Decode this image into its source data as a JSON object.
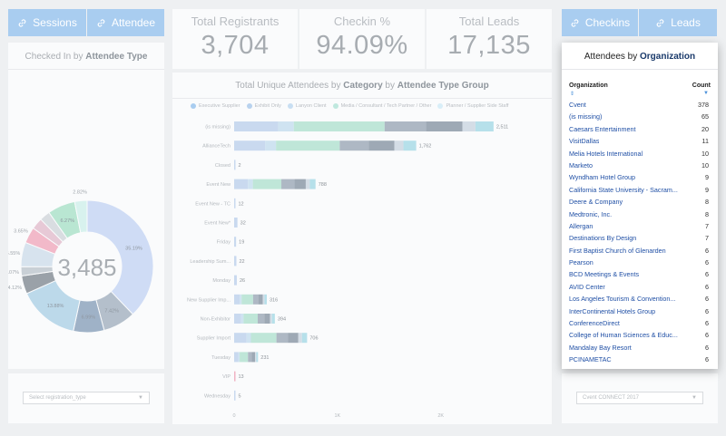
{
  "left_tabs": [
    {
      "label": "Sessions",
      "icon": "link-icon"
    },
    {
      "label": "Attendee",
      "icon": "link-icon"
    }
  ],
  "right_tabs": [
    {
      "label": "Checkins",
      "icon": "link-icon"
    },
    {
      "label": "Leads",
      "icon": "link-icon"
    }
  ],
  "kpis": [
    {
      "label": "Total Registrants",
      "value": "3,704"
    },
    {
      "label": "Checkin %",
      "value": "94.09%"
    },
    {
      "label": "Total Leads",
      "value": "17,135"
    }
  ],
  "donut_panel": {
    "title_prefix": "Checked In by ",
    "title_bold": "Attendee Type",
    "center_value": "3,485",
    "slices": [
      {
        "label": "35.19%",
        "value": 35.19,
        "color": "#cfdcf5"
      },
      {
        "label": "7.42%",
        "value": 7.42,
        "color": "#b4bfcb"
      },
      {
        "label": "6.99%",
        "value": 6.99,
        "color": "#9fb2c7"
      },
      {
        "label": "13.88%",
        "value": 13.88,
        "color": "#bcd9ea"
      },
      {
        "label": "4.12%",
        "value": 4.12,
        "color": "#9aa1a8"
      },
      {
        "label": "2.07%",
        "value": 2.07,
        "color": "#c9d0d6"
      },
      {
        "label": "5.55%",
        "value": 5.55,
        "color": "#d7e3ee"
      },
      {
        "label": "3.65%",
        "value": 3.65,
        "color": "#f2b9c9"
      },
      {
        "label": "",
        "value": 2.6,
        "color": "#e7c9d6"
      },
      {
        "label": "",
        "value": 2.4,
        "color": "#d9dde1"
      },
      {
        "label": "6.27%",
        "value": 6.27,
        "color": "#b9e6d2"
      },
      {
        "label": "2.82%",
        "value": 2.82,
        "color": "#d8f2ee"
      }
    ]
  },
  "left_select": {
    "placeholder": "Select registration_type"
  },
  "right_select": {
    "value": "Cvent CONNECT 2017"
  },
  "chart_data": {
    "type": "bar",
    "title_prefix": "Total Unique Attendees by ",
    "title_bold1": "Category",
    "title_mid": " by ",
    "title_bold2": "Attendee Type Group",
    "legend": [
      {
        "name": "Executive Supplier",
        "color": "#a9cdf0"
      },
      {
        "name": "Exhibit Only",
        "color": "#b8d2ee"
      },
      {
        "name": "Lanyon Client",
        "color": "#c8def2"
      },
      {
        "name": "Media / Consultant / Tech Partner / Other",
        "color": "#bfe8de"
      },
      {
        "name": "Planner / Supplier Side Staff",
        "color": "#d8eef8"
      }
    ],
    "categories": [
      "(is missing)",
      "AllianceTech",
      "Closed",
      "Event New",
      "Event New - TC",
      "Event New*",
      "Friday",
      "Leadership Sum...",
      "Monday",
      "New Supplier Imp...",
      "Non-Exhibitor",
      "Supplier Import",
      "Tuesday",
      "VIP",
      "Wednesday"
    ],
    "values": [
      2511,
      1762,
      2,
      788,
      12,
      32,
      19,
      22,
      26,
      316,
      394,
      706,
      231,
      13,
      5
    ],
    "value_labels": [
      "2,511",
      "1,762",
      "2",
      "788",
      "12",
      "32",
      "19",
      "22",
      "26",
      "316",
      "394",
      "706",
      "231",
      "13",
      "5"
    ],
    "x_ticks": [
      "0",
      "1K",
      "2K"
    ],
    "xlim": [
      0,
      2600
    ]
  },
  "org_table": {
    "title_prefix": "Attendees by ",
    "title_bold": "Organization",
    "col_org": "Organization",
    "col_count": "Count",
    "rows": [
      {
        "org": "Cvent",
        "count": "378"
      },
      {
        "org": "(is missing)",
        "count": "65"
      },
      {
        "org": "Caesars Entertainment",
        "count": "20"
      },
      {
        "org": "VisitDallas",
        "count": "11"
      },
      {
        "org": "Melia Hotels International",
        "count": "10"
      },
      {
        "org": "Marketo",
        "count": "10"
      },
      {
        "org": "Wyndham Hotel Group",
        "count": "9"
      },
      {
        "org": "California State University - Sacram...",
        "count": "9"
      },
      {
        "org": "Deere & Company",
        "count": "8"
      },
      {
        "org": "Medtronic, Inc.",
        "count": "8"
      },
      {
        "org": "Allergan",
        "count": "7"
      },
      {
        "org": "Destinations By Design",
        "count": "7"
      },
      {
        "org": "First Baptist Church of Glenarden",
        "count": "6"
      },
      {
        "org": "Pearson",
        "count": "6"
      },
      {
        "org": "BCD Meetings & Events",
        "count": "6"
      },
      {
        "org": "AVID Center",
        "count": "6"
      },
      {
        "org": "Los Angeles Tourism & Convention...",
        "count": "6"
      },
      {
        "org": "InterContinental Hotels Group",
        "count": "6"
      },
      {
        "org": "ConferenceDirect",
        "count": "6"
      },
      {
        "org": "College of Human Sciences & Educ...",
        "count": "6"
      },
      {
        "org": "Mandalay Bay Resort",
        "count": "6"
      },
      {
        "org": "PCINAMETAC",
        "count": "6"
      }
    ]
  }
}
